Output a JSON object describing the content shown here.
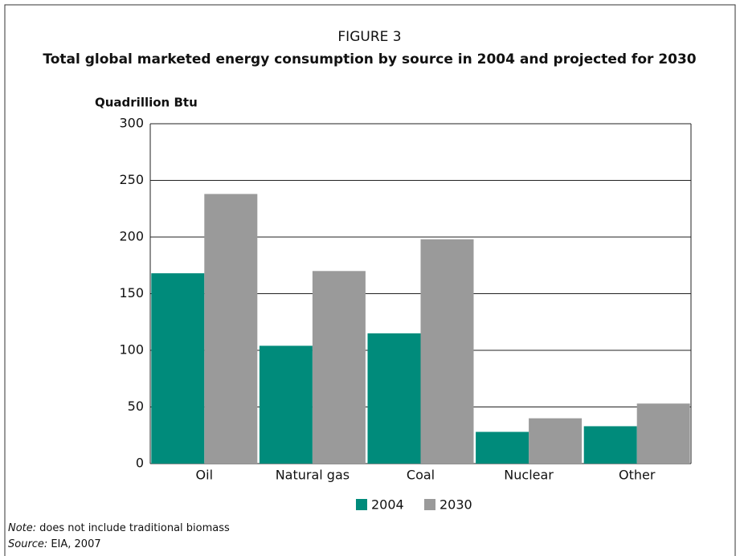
{
  "chart_data": {
    "type": "bar",
    "figure_label": "FIGURE 3",
    "title": "Total global marketed energy consumption by source in 2004 and projected for 2030",
    "y_axis_label": "Quadrillion Btu",
    "categories": [
      "Oil",
      "Natural gas",
      "Coal",
      "Nuclear",
      "Other"
    ],
    "series": [
      {
        "name": "2004",
        "color": "#008b7b",
        "values": [
          168,
          104,
          115,
          28,
          33
        ]
      },
      {
        "name": "2030",
        "color": "#9a9a9a",
        "values": [
          238,
          170,
          198,
          40,
          53
        ]
      }
    ],
    "ylim": [
      0,
      300
    ],
    "yticks": [
      0,
      50,
      100,
      150,
      200,
      250,
      300
    ],
    "grid": true,
    "legend": "bottom",
    "notes": [
      {
        "prefix": "Note:",
        "text": "does not include traditional biomass"
      },
      {
        "prefix": "Source:",
        "text": "EIA, 2007"
      }
    ]
  }
}
